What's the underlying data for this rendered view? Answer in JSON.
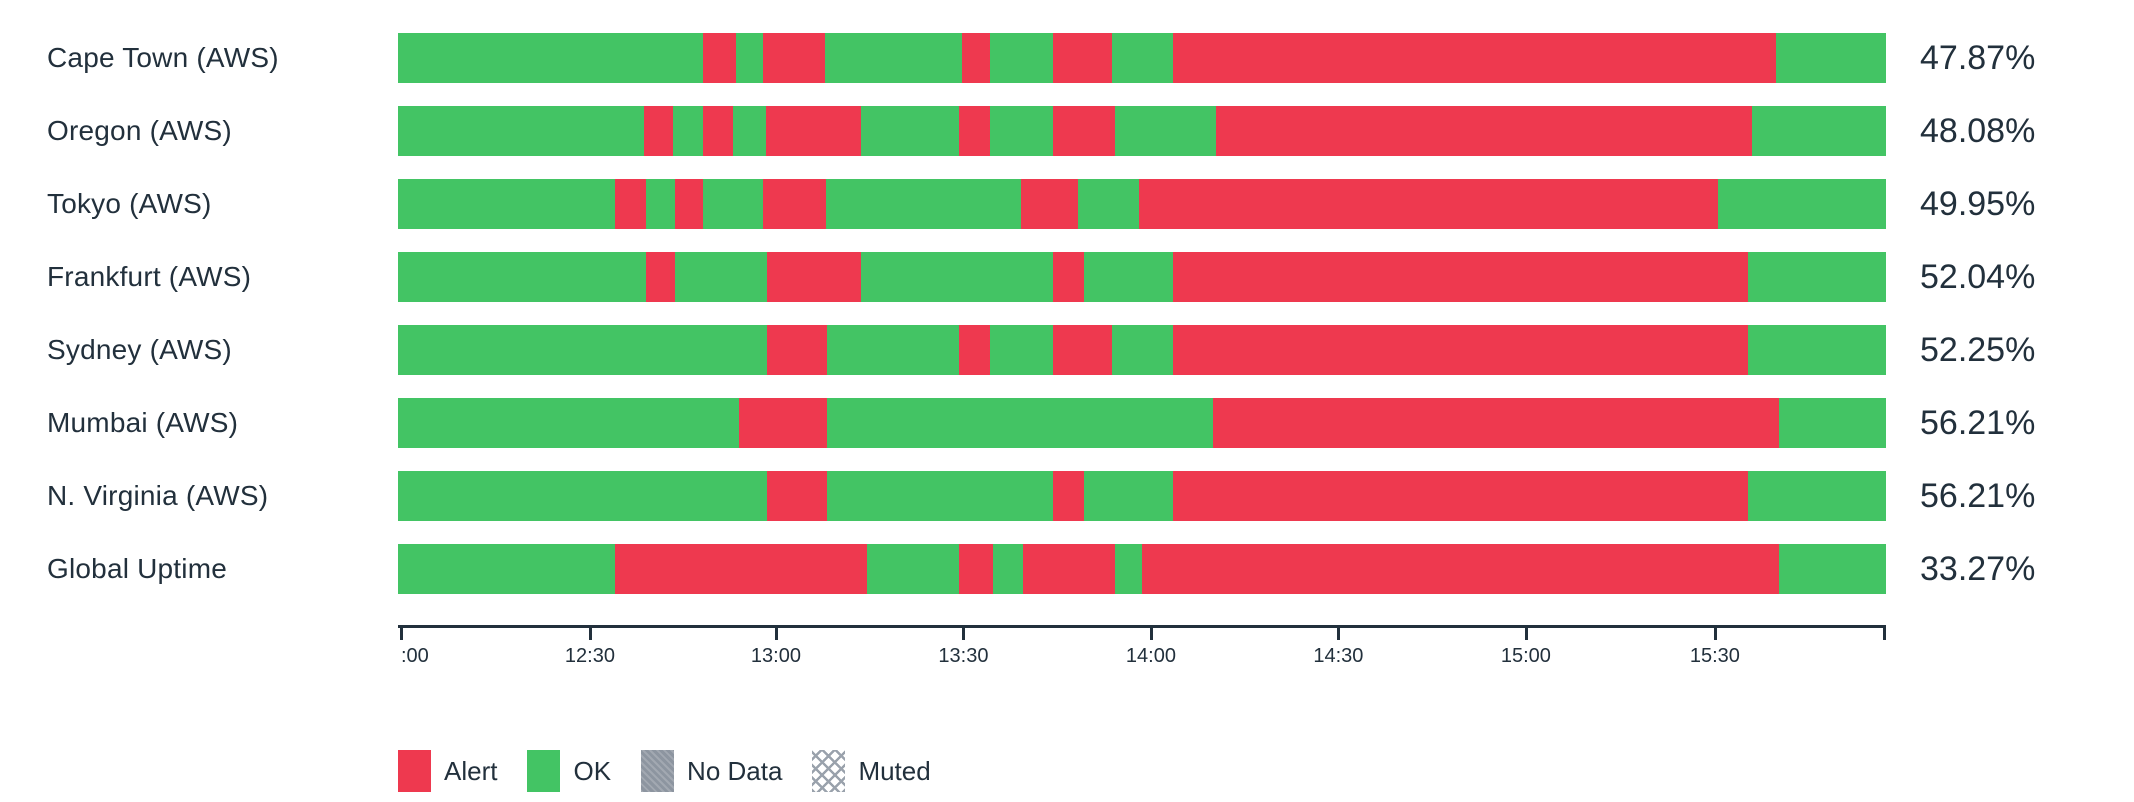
{
  "colors": {
    "alert": "#ee394f",
    "ok": "#43c464",
    "no_data": "#8d95a0",
    "muted_hatch": "#9aa2ac",
    "text": "#22303c",
    "axis": "#22303c"
  },
  "chart_data": {
    "type": "status-timeline-bar",
    "description": "Uptime status timeline per region; green=OK, red=Alert; right column shows uptime percent",
    "xlabel": "",
    "ylabel": "",
    "axis_ticks": [
      {
        "label": ":00",
        "pos_pct": 0.2,
        "align": "left"
      },
      {
        "label": "12:30",
        "pos_pct": 12.9
      },
      {
        "label": "13:00",
        "pos_pct": 25.4
      },
      {
        "label": "13:30",
        "pos_pct": 38.0
      },
      {
        "label": "14:00",
        "pos_pct": 50.6
      },
      {
        "label": "14:30",
        "pos_pct": 63.2
      },
      {
        "label": "15:00",
        "pos_pct": 75.8
      },
      {
        "label": "15:30",
        "pos_pct": 88.5
      }
    ],
    "axis_end_tick_pct": 100,
    "rows": [
      {
        "label": "Cape Town (AWS)",
        "uptime": "47.87%",
        "segments": [
          {
            "status": "ok",
            "width_pct": 20.5
          },
          {
            "status": "alert",
            "width_pct": 2.2
          },
          {
            "status": "ok",
            "width_pct": 1.8
          },
          {
            "status": "alert",
            "width_pct": 4.2
          },
          {
            "status": "ok",
            "width_pct": 9.2
          },
          {
            "status": "alert",
            "width_pct": 1.9
          },
          {
            "status": "ok",
            "width_pct": 4.2
          },
          {
            "status": "alert",
            "width_pct": 4.0
          },
          {
            "status": "ok",
            "width_pct": 4.1
          },
          {
            "status": "alert",
            "width_pct": 40.5
          },
          {
            "status": "ok",
            "width_pct": 7.4
          }
        ]
      },
      {
        "label": "Oregon (AWS)",
        "uptime": "48.08%",
        "segments": [
          {
            "status": "ok",
            "width_pct": 16.5
          },
          {
            "status": "alert",
            "width_pct": 2.0
          },
          {
            "status": "ok",
            "width_pct": 2.0
          },
          {
            "status": "alert",
            "width_pct": 2.0
          },
          {
            "status": "ok",
            "width_pct": 2.2
          },
          {
            "status": "alert",
            "width_pct": 6.4
          },
          {
            "status": "ok",
            "width_pct": 6.6
          },
          {
            "status": "alert",
            "width_pct": 2.1
          },
          {
            "status": "ok",
            "width_pct": 4.2
          },
          {
            "status": "alert",
            "width_pct": 4.2
          },
          {
            "status": "ok",
            "width_pct": 6.8
          },
          {
            "status": "alert",
            "width_pct": 36.0
          },
          {
            "status": "ok",
            "width_pct": 9.0
          }
        ]
      },
      {
        "label": "Tokyo (AWS)",
        "uptime": "49.95%",
        "segments": [
          {
            "status": "ok",
            "width_pct": 14.6
          },
          {
            "status": "alert",
            "width_pct": 2.1
          },
          {
            "status": "ok",
            "width_pct": 1.9
          },
          {
            "status": "alert",
            "width_pct": 1.9
          },
          {
            "status": "ok",
            "width_pct": 4.0
          },
          {
            "status": "alert",
            "width_pct": 4.3
          },
          {
            "status": "ok",
            "width_pct": 13.1
          },
          {
            "status": "alert",
            "width_pct": 3.8
          },
          {
            "status": "ok",
            "width_pct": 4.1
          },
          {
            "status": "alert",
            "width_pct": 38.9
          },
          {
            "status": "ok",
            "width_pct": 11.3
          }
        ]
      },
      {
        "label": "Frankfurt (AWS)",
        "uptime": "52.04%",
        "segments": [
          {
            "status": "ok",
            "width_pct": 16.7
          },
          {
            "status": "alert",
            "width_pct": 1.9
          },
          {
            "status": "ok",
            "width_pct": 6.2
          },
          {
            "status": "alert",
            "width_pct": 6.3
          },
          {
            "status": "ok",
            "width_pct": 12.9
          },
          {
            "status": "alert",
            "width_pct": 2.1
          },
          {
            "status": "ok",
            "width_pct": 6.0
          },
          {
            "status": "alert",
            "width_pct": 38.6
          },
          {
            "status": "ok",
            "width_pct": 9.3
          }
        ]
      },
      {
        "label": "Sydney (AWS)",
        "uptime": "52.25%",
        "segments": [
          {
            "status": "ok",
            "width_pct": 24.8
          },
          {
            "status": "alert",
            "width_pct": 4.0
          },
          {
            "status": "ok",
            "width_pct": 8.9
          },
          {
            "status": "alert",
            "width_pct": 2.1
          },
          {
            "status": "ok",
            "width_pct": 4.2
          },
          {
            "status": "alert",
            "width_pct": 4.0
          },
          {
            "status": "ok",
            "width_pct": 4.1
          },
          {
            "status": "alert",
            "width_pct": 38.6
          },
          {
            "status": "ok",
            "width_pct": 9.3
          }
        ]
      },
      {
        "label": "Mumbai (AWS)",
        "uptime": "56.21%",
        "segments": [
          {
            "status": "ok",
            "width_pct": 22.9
          },
          {
            "status": "alert",
            "width_pct": 5.9
          },
          {
            "status": "ok",
            "width_pct": 26.0
          },
          {
            "status": "alert",
            "width_pct": 38.0
          },
          {
            "status": "ok",
            "width_pct": 7.2
          }
        ]
      },
      {
        "label": "N. Virginia (AWS)",
        "uptime": "56.21%",
        "segments": [
          {
            "status": "ok",
            "width_pct": 24.8
          },
          {
            "status": "alert",
            "width_pct": 4.0
          },
          {
            "status": "ok",
            "width_pct": 15.2
          },
          {
            "status": "alert",
            "width_pct": 2.1
          },
          {
            "status": "ok",
            "width_pct": 6.0
          },
          {
            "status": "alert",
            "width_pct": 38.6
          },
          {
            "status": "ok",
            "width_pct": 9.3
          }
        ]
      },
      {
        "label": "Global Uptime",
        "uptime": "33.27%",
        "segments": [
          {
            "status": "ok",
            "width_pct": 14.6
          },
          {
            "status": "alert",
            "width_pct": 16.9
          },
          {
            "status": "ok",
            "width_pct": 6.2
          },
          {
            "status": "alert",
            "width_pct": 2.3
          },
          {
            "status": "ok",
            "width_pct": 2.0
          },
          {
            "status": "alert",
            "width_pct": 6.2
          },
          {
            "status": "ok",
            "width_pct": 1.8
          },
          {
            "status": "alert",
            "width_pct": 42.8
          },
          {
            "status": "ok",
            "width_pct": 7.2
          }
        ]
      }
    ],
    "legend": [
      {
        "label": "Alert",
        "status": "alert"
      },
      {
        "label": "OK",
        "status": "ok"
      },
      {
        "label": "No Data",
        "status": "no_data"
      },
      {
        "label": "Muted",
        "status": "muted"
      }
    ]
  }
}
